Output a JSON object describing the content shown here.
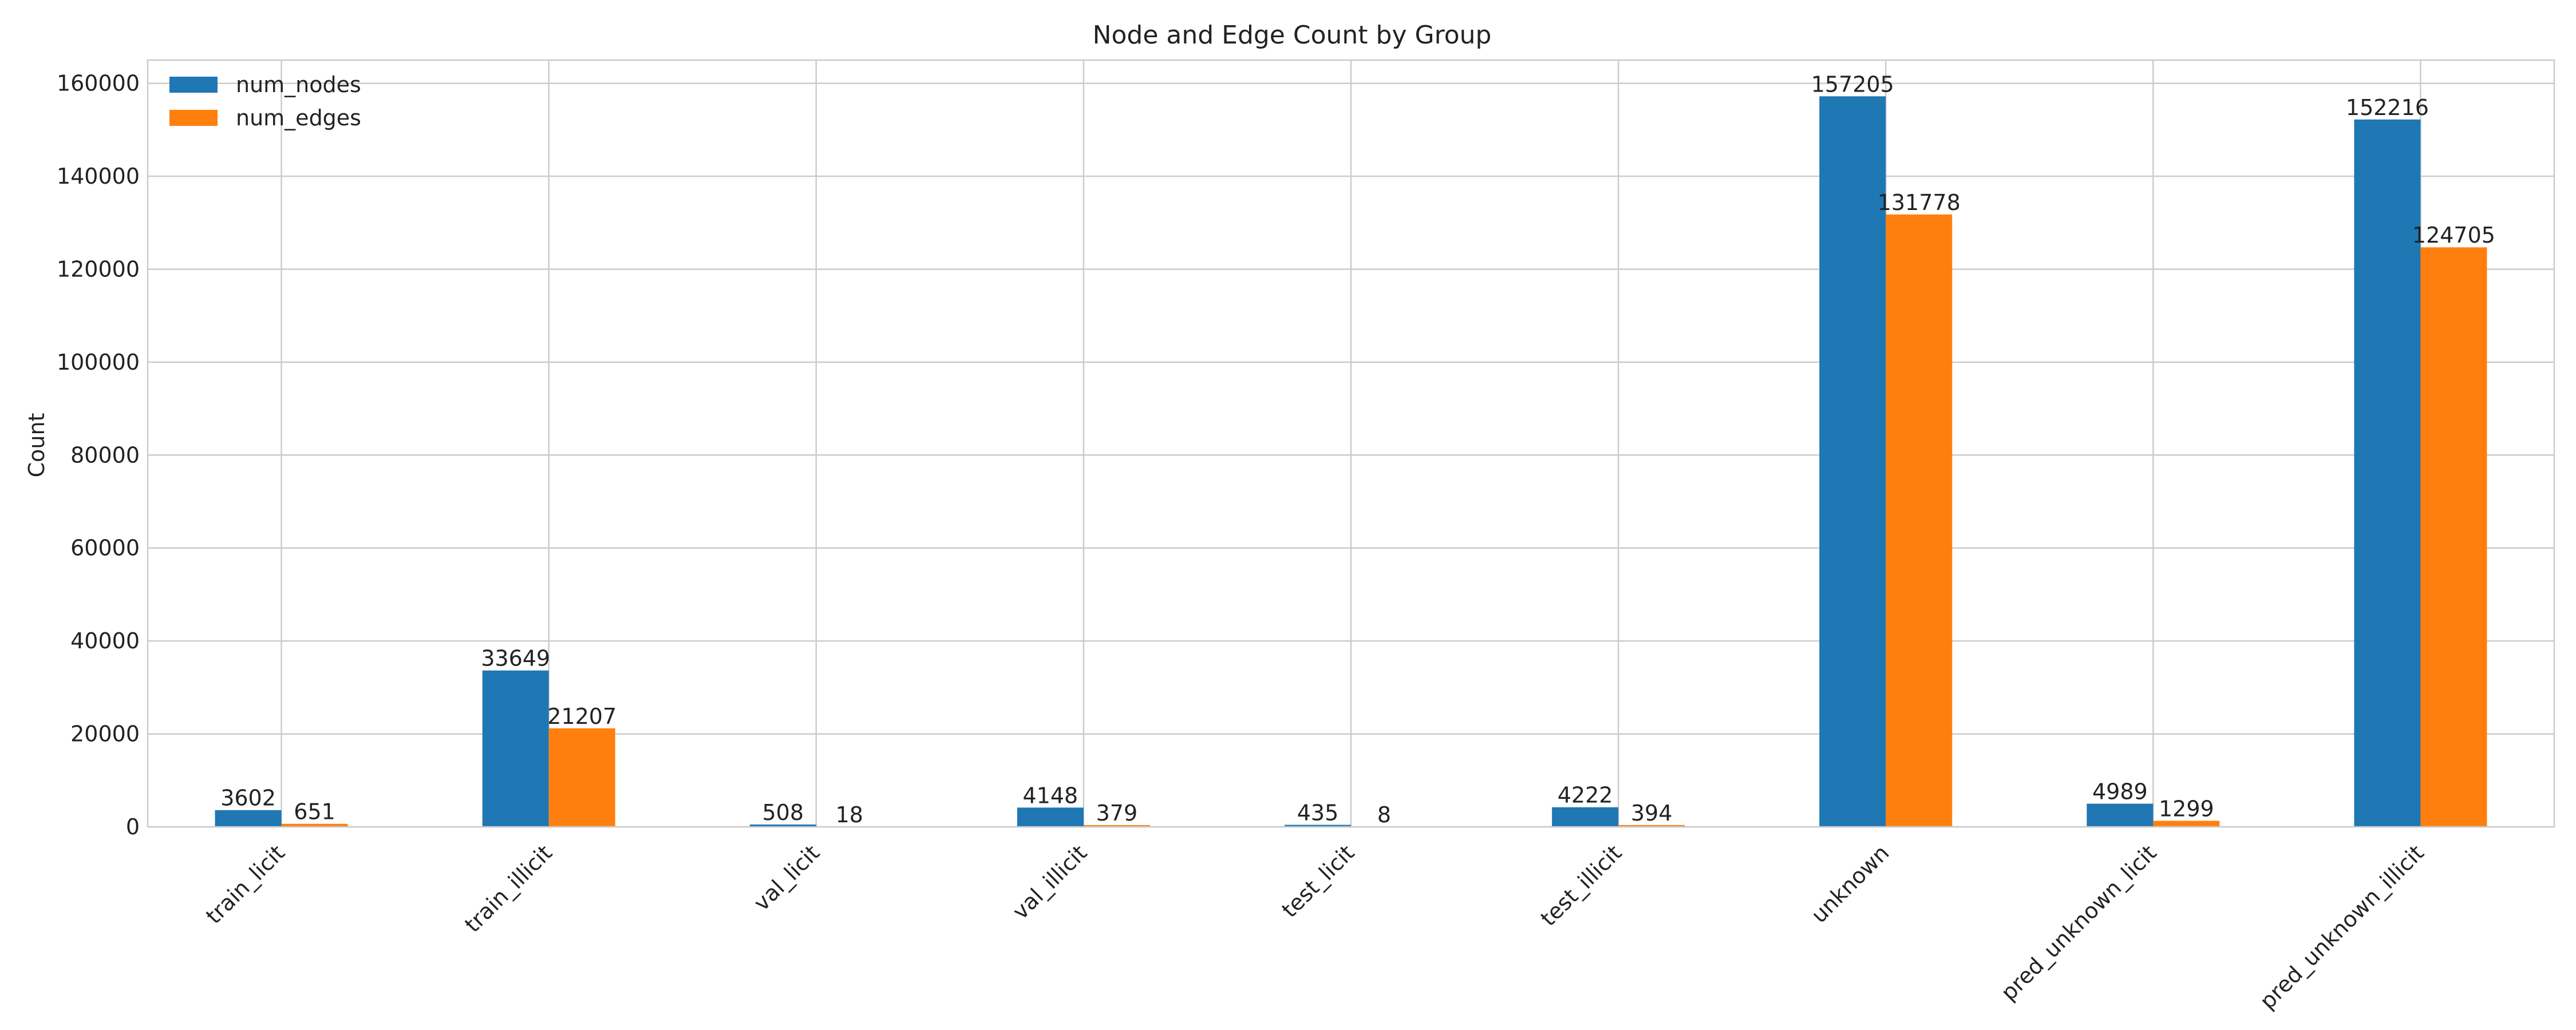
{
  "chart_data": {
    "type": "bar",
    "title": "Node and Edge Count by Group",
    "xlabel": "",
    "ylabel": "Count",
    "ylim": [
      0,
      165000
    ],
    "yticks": [
      0,
      20000,
      40000,
      60000,
      80000,
      100000,
      120000,
      140000,
      160000
    ],
    "grid": true,
    "legend_position": "top-left",
    "categories": [
      "train_licit",
      "train_illicit",
      "val_licit",
      "val_illicit",
      "test_licit",
      "test_illicit",
      "unknown",
      "pred_unknown_licit",
      "pred_unknown_illicit"
    ],
    "series": [
      {
        "name": "num_nodes",
        "color": "#1f77b4",
        "values": [
          3602,
          33649,
          508,
          4148,
          435,
          4222,
          157205,
          4989,
          152216
        ]
      },
      {
        "name": "num_edges",
        "color": "#ff7f0e",
        "values": [
          651,
          21207,
          18,
          379,
          8,
          394,
          131778,
          1299,
          124705
        ]
      }
    ]
  }
}
